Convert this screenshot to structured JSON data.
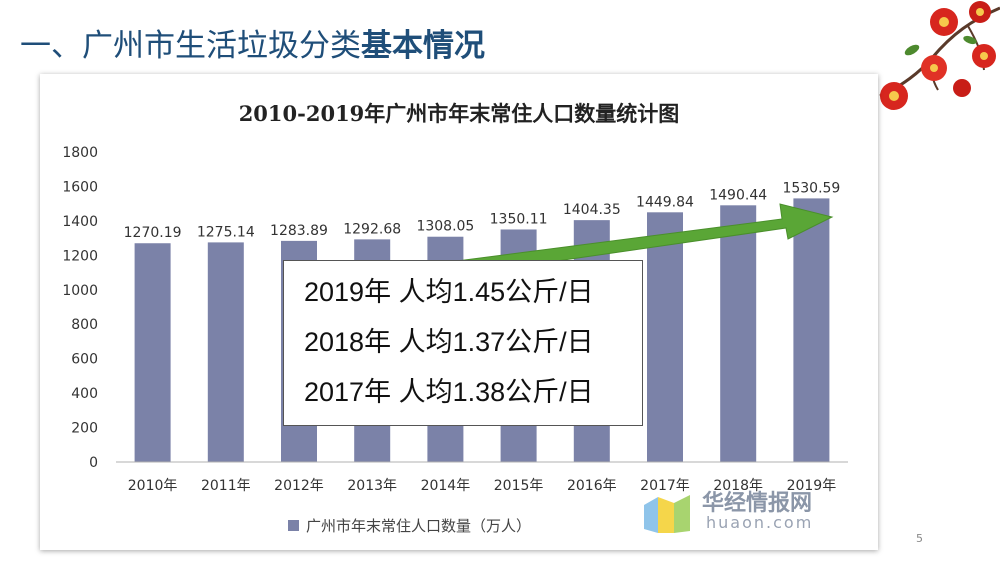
{
  "slide": {
    "title_normal": "一、广州市生活垃圾分类",
    "title_bold": "基本情况",
    "page_number": "5"
  },
  "colors": {
    "bar": "#7b82a8",
    "arrow": "#5aa636",
    "title": "#1f4e79"
  },
  "info_box": {
    "lines": [
      "2019年 人均1.45公斤/日",
      "2018年 人均1.37公斤/日",
      "2017年 人均1.38公斤/日"
    ]
  },
  "watermark": {
    "name": "华经情报网",
    "domain": "huaon.com"
  },
  "chart_data": {
    "type": "bar",
    "title": "2010-2019年广州市年末常住人口数量统计图",
    "categories": [
      "2010年",
      "2011年",
      "2012年",
      "2013年",
      "2014年",
      "2015年",
      "2016年",
      "2017年",
      "2018年",
      "2019年"
    ],
    "series": [
      {
        "name": "广州市年末常住人口数量（万人）",
        "values": [
          1270.19,
          1275.14,
          1283.89,
          1292.68,
          1308.05,
          1350.11,
          1404.35,
          1449.84,
          1490.44,
          1530.59
        ],
        "labels": [
          "1270.19",
          "1275.14",
          "1283.89",
          "1292.68",
          "1308.05",
          "1350.11",
          "1404.35",
          "1449.84",
          "1490.44",
          "1530.59"
        ]
      }
    ],
    "y_ticks": [
      "0",
      "200",
      "400",
      "600",
      "800",
      "1000",
      "1200",
      "1400",
      "1600",
      "1800"
    ],
    "ylim": [
      0,
      1800
    ],
    "grid": false,
    "legend_position": "bottom-left",
    "annotation": "upward-trend-arrow"
  }
}
